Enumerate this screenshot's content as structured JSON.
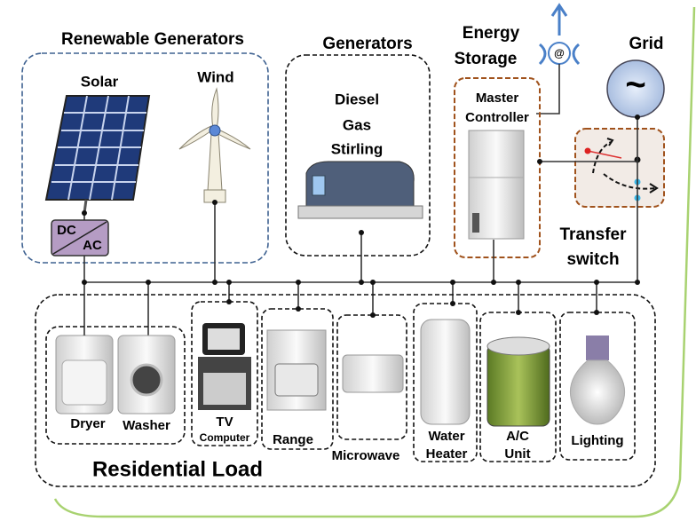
{
  "renewable_generators": {
    "title": "Renewable Generators",
    "solar": "Solar",
    "wind": "Wind",
    "converter": [
      "DC",
      "AC"
    ]
  },
  "generators": {
    "title": "Generators",
    "types": [
      "Diesel",
      "Gas",
      "Stirling"
    ]
  },
  "energy_storage": {
    "title": [
      "Energy",
      "Storage"
    ],
    "icon": "@"
  },
  "master_controller": [
    "Master",
    "Controller"
  ],
  "grid": {
    "title": "Grid",
    "symbol": "~"
  },
  "transfer_switch": [
    "Transfer",
    "switch"
  ],
  "residential_load": {
    "title": "Residential Load",
    "loads": [
      [
        "Dryer"
      ],
      [
        "Washer"
      ],
      [
        "TV",
        "Computer"
      ],
      [
        "Range"
      ],
      [
        "Microwave"
      ],
      [
        "Water",
        "Heater"
      ],
      [
        "A/C",
        "Unit"
      ],
      [
        "Lighting"
      ]
    ]
  }
}
